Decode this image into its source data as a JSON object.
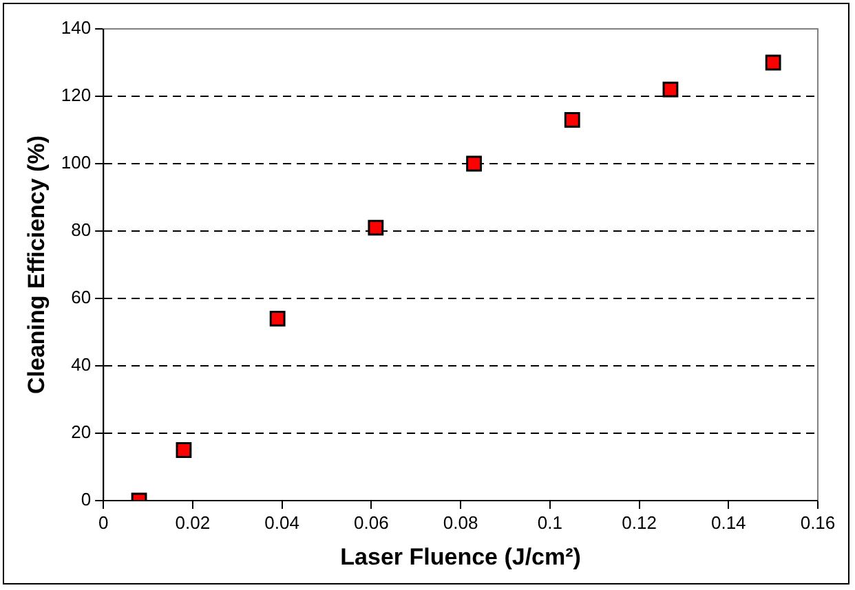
{
  "chart_data": {
    "type": "scatter",
    "xlabel": "Laser Fluence (J/cm²)",
    "ylabel": "Cleaning Efficiency (%)",
    "series": [
      {
        "color": "#ff0000",
        "x": [
          0.008,
          0.018,
          0.039,
          0.061,
          0.083,
          0.105,
          0.127,
          0.15
        ],
        "values": [
          0,
          15,
          54,
          81,
          100,
          113,
          122,
          130
        ]
      }
    ],
    "xlim": [
      0,
      0.16
    ],
    "xticks": [
      0,
      0.02,
      0.04,
      0.06,
      0.08,
      0.1,
      0.12,
      0.14,
      0.16
    ],
    "ylim": [
      0,
      140
    ],
    "yticks": [
      0,
      20,
      40,
      60,
      80,
      100,
      120,
      140
    ],
    "grid": "y",
    "legend": false,
    "marker": "square",
    "line_style": "dashed"
  }
}
